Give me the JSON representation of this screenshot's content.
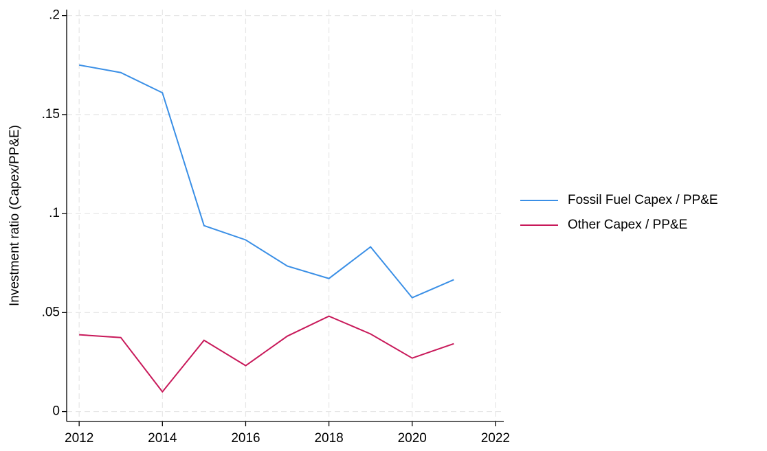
{
  "chart_data": {
    "type": "line",
    "y_label": "Investment ratio (Capex/PP&E)",
    "x": [
      2012,
      2013,
      2014,
      2015,
      2016,
      2017,
      2018,
      2019,
      2020,
      2021
    ],
    "series": [
      {
        "name": "Fossil Fuel Capex / PP&E",
        "color": "#3a8fe6",
        "values": [
          0.175,
          0.1712,
          0.161,
          0.0939,
          0.0867,
          0.0735,
          0.0672,
          0.0832,
          0.0575,
          0.0666
        ]
      },
      {
        "name": "Other Capex / PP&E",
        "color": "#c8195a",
        "values": [
          0.0388,
          0.0374,
          0.01,
          0.036,
          0.0232,
          0.0381,
          0.0482,
          0.0392,
          0.027,
          0.0343
        ]
      }
    ],
    "xlim": [
      2011.7,
      2022.2
    ],
    "xticks": [
      2012,
      2014,
      2016,
      2018,
      2020,
      2022
    ],
    "ylim": [
      -0.005,
      0.203
    ],
    "yticks": [
      0,
      {
        "value": 0.05,
        "label": ".05"
      },
      {
        "value": 0.1,
        "label": ".1"
      },
      {
        "value": 0.15,
        "label": ".15"
      },
      {
        "value": 0.2,
        "label": ".2"
      }
    ],
    "grid": true,
    "legend": "right"
  }
}
